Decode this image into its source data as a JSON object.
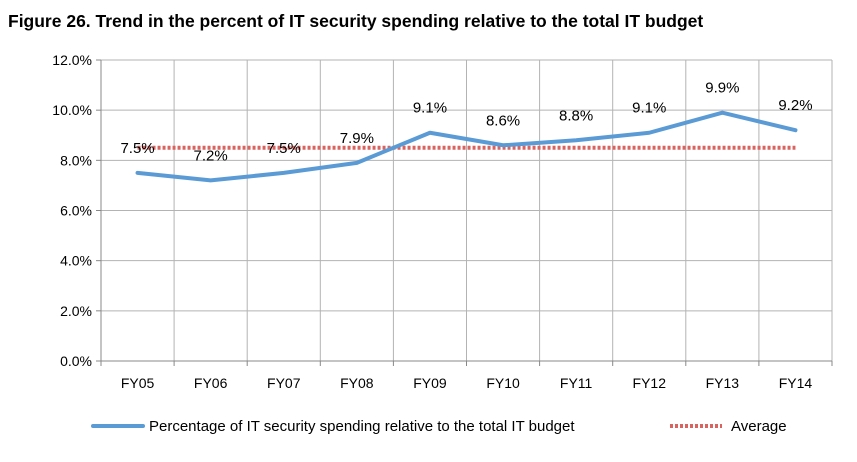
{
  "title": "Figure 26. Trend in the percent of IT security spending relative to the total IT budget",
  "chart_data": {
    "type": "line",
    "title": "Figure 26. Trend in the percent of IT security spending relative to the total IT budget",
    "categories": [
      "FY05",
      "FY06",
      "FY07",
      "FY08",
      "FY09",
      "FY10",
      "FY11",
      "FY12",
      "FY13",
      "FY14"
    ],
    "series": [
      {
        "name": "Percentage of IT security spending relative to the total IT budget",
        "values": [
          7.5,
          7.2,
          7.5,
          7.9,
          9.1,
          8.6,
          8.8,
          9.1,
          9.9,
          9.2
        ],
        "labels": [
          "7.5%",
          "7.2%",
          "7.5%",
          "7.9%",
          "9.1%",
          "8.6%",
          "8.8%",
          "9.1%",
          "9.9%",
          "9.2%"
        ],
        "color": "#5b9bd5",
        "style": "solid"
      },
      {
        "name": "Average",
        "values": [
          8.5,
          8.5,
          8.5,
          8.5,
          8.5,
          8.5,
          8.5,
          8.5,
          8.5,
          8.5
        ],
        "color": "#d9635f",
        "style": "dotted"
      }
    ],
    "ylim": [
      0,
      12
    ],
    "yticks": [
      0,
      2,
      4,
      6,
      8,
      10,
      12
    ],
    "ytick_labels": [
      "0.0%",
      "2.0%",
      "4.0%",
      "6.0%",
      "8.0%",
      "10.0%",
      "12.0%"
    ],
    "xlabel": "",
    "ylabel": "",
    "grid": true,
    "legend_position": "bottom"
  }
}
